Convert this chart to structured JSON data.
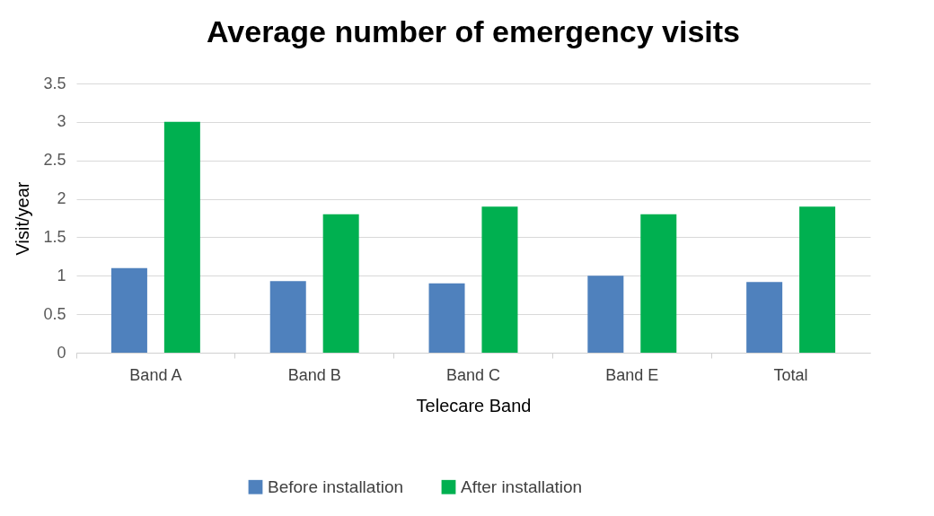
{
  "chart_data": {
    "type": "bar",
    "title": "Average number of emergency visits",
    "xlabel": "Telecare Band",
    "ylabel": "Visit/year",
    "categories": [
      "Band A",
      "Band B",
      "Band C",
      "Band E",
      "Total"
    ],
    "series": [
      {
        "name": "Before installation",
        "color": "#4f81bd",
        "values": [
          1.1,
          0.93,
          0.9,
          1.0,
          0.92
        ]
      },
      {
        "name": "After installation",
        "color": "#00b050",
        "values": [
          3.0,
          1.8,
          1.9,
          1.8,
          1.9
        ]
      }
    ],
    "ylim": [
      0,
      3.5
    ],
    "yticks": [
      0,
      0.5,
      1,
      1.5,
      2,
      2.5,
      3,
      3.5
    ],
    "grid": "y",
    "legend": "bottom"
  }
}
